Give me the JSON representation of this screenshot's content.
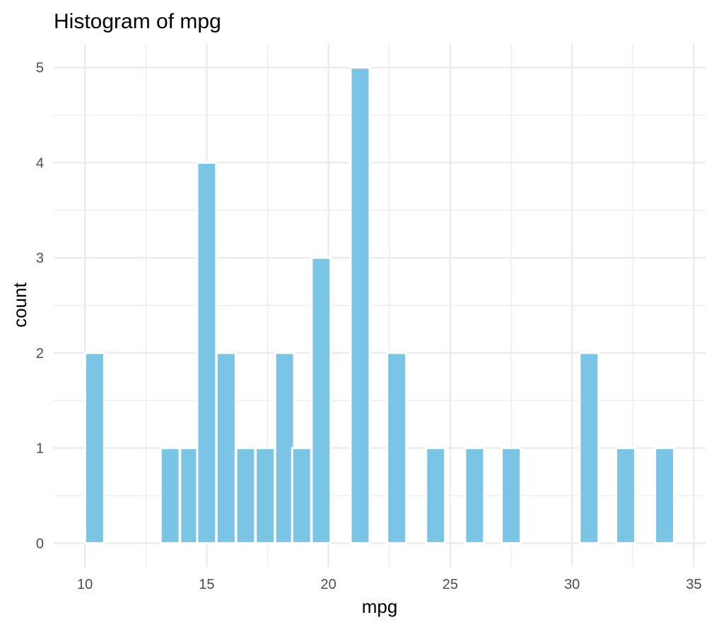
{
  "chart_data": {
    "type": "bar",
    "title": "Histogram of mpg",
    "xlabel": "mpg",
    "ylabel": "count",
    "xlim": [
      8.72,
      35.48
    ],
    "ylim": [
      -0.25,
      5.25
    ],
    "x_ticks": [
      10,
      15,
      20,
      25,
      30,
      35
    ],
    "y_ticks": [
      0,
      1,
      2,
      3,
      4,
      5
    ],
    "grid": true,
    "bin_width": 0.78,
    "bins": [
      {
        "center": 10.4,
        "count": 2
      },
      {
        "center": 13.5,
        "count": 1
      },
      {
        "center": 14.3,
        "count": 1
      },
      {
        "center": 15.0,
        "count": 4
      },
      {
        "center": 15.8,
        "count": 2
      },
      {
        "center": 16.6,
        "count": 1
      },
      {
        "center": 17.4,
        "count": 1
      },
      {
        "center": 18.2,
        "count": 2
      },
      {
        "center": 18.9,
        "count": 1
      },
      {
        "center": 19.7,
        "count": 3
      },
      {
        "center": 21.3,
        "count": 5
      },
      {
        "center": 22.8,
        "count": 2
      },
      {
        "center": 24.4,
        "count": 1
      },
      {
        "center": 26.0,
        "count": 1
      },
      {
        "center": 27.5,
        "count": 1
      },
      {
        "center": 30.7,
        "count": 2
      },
      {
        "center": 32.2,
        "count": 1
      },
      {
        "center": 33.8,
        "count": 1
      }
    ],
    "colors": {
      "fill": "#7ac4e5",
      "outline": "#ffffff",
      "grid": "#ebebeb"
    }
  }
}
